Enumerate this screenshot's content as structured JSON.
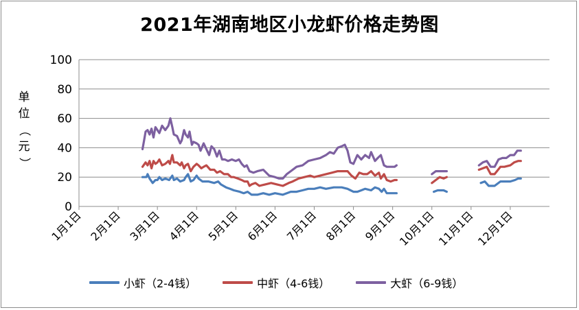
{
  "chart_data": {
    "type": "line",
    "title": "2021年湖南地区小龙虾价格走势图",
    "ylabel": "单位（元）",
    "xlabel": "",
    "ylim": [
      0,
      100
    ],
    "yticks": [
      0,
      20,
      40,
      60,
      80,
      100
    ],
    "categories": [
      "1月1日",
      "2月1日",
      "3月1日",
      "4月1日",
      "5月1日",
      "6月1日",
      "7月1日",
      "8月1日",
      "9月1日",
      "10月1日",
      "11月1日",
      "12月1日"
    ],
    "grid": "horizontal",
    "legend_position": "bottom",
    "series": [
      {
        "name": "小虾（2-4钱）",
        "color": "#4a7ebb",
        "segments": [
          [
            [
              2.62,
              20
            ],
            [
              2.72,
              20
            ],
            [
              2.75,
              22
            ],
            [
              2.8,
              19
            ],
            [
              2.88,
              16
            ],
            [
              2.95,
              18
            ],
            [
              3.0,
              18
            ],
            [
              3.05,
              20
            ],
            [
              3.12,
              18
            ],
            [
              3.2,
              19
            ],
            [
              3.3,
              18
            ],
            [
              3.38,
              21
            ],
            [
              3.42,
              18
            ],
            [
              3.5,
              19
            ],
            [
              3.58,
              17
            ],
            [
              3.68,
              18
            ],
            [
              3.72,
              20
            ],
            [
              3.78,
              22
            ],
            [
              3.85,
              17
            ],
            [
              3.92,
              18
            ],
            [
              4.0,
              21
            ],
            [
              4.05,
              19
            ],
            [
              4.15,
              17
            ],
            [
              4.3,
              17
            ],
            [
              4.45,
              16
            ],
            [
              4.55,
              17
            ],
            [
              4.62,
              15
            ],
            [
              4.75,
              13
            ],
            [
              4.85,
              12
            ],
            [
              4.95,
              11
            ],
            [
              5.1,
              10
            ],
            [
              5.2,
              9
            ],
            [
              5.3,
              10
            ],
            [
              5.4,
              8
            ],
            [
              5.55,
              8
            ],
            [
              5.7,
              9
            ],
            [
              5.85,
              8
            ],
            [
              6.0,
              9
            ],
            [
              6.2,
              8
            ],
            [
              6.4,
              10
            ],
            [
              6.55,
              10
            ],
            [
              6.7,
              11
            ],
            [
              6.85,
              12
            ],
            [
              7.0,
              12
            ],
            [
              7.15,
              13
            ],
            [
              7.3,
              12
            ],
            [
              7.5,
              13
            ],
            [
              7.7,
              13
            ],
            [
              7.85,
              12
            ],
            [
              8.0,
              10
            ],
            [
              8.1,
              10
            ],
            [
              8.2,
              11
            ],
            [
              8.3,
              12
            ],
            [
              8.45,
              11
            ],
            [
              8.55,
              13
            ],
            [
              8.65,
              12
            ],
            [
              8.72,
              10
            ],
            [
              8.78,
              12
            ],
            [
              8.85,
              9
            ],
            [
              8.95,
              9
            ],
            [
              9.05,
              9
            ],
            [
              9.1,
              9
            ]
          ],
          [
            [
              10.05,
              10
            ],
            [
              10.15,
              11
            ],
            [
              10.3,
              11
            ],
            [
              10.38,
              10
            ]
          ],
          [
            [
              11.25,
              16
            ],
            [
              11.35,
              17
            ],
            [
              11.45,
              14
            ],
            [
              11.6,
              14
            ],
            [
              11.75,
              17
            ],
            [
              11.9,
              17
            ],
            [
              12.0,
              17
            ],
            [
              12.12,
              18
            ],
            [
              12.2,
              19
            ],
            [
              12.27,
              19
            ]
          ]
        ]
      },
      {
        "name": "中虾（4-6钱）",
        "color": "#be4b48",
        "segments": [
          [
            [
              2.62,
              27
            ],
            [
              2.7,
              30
            ],
            [
              2.75,
              28
            ],
            [
              2.8,
              31
            ],
            [
              2.85,
              26
            ],
            [
              2.9,
              31
            ],
            [
              2.95,
              29
            ],
            [
              3.0,
              30
            ],
            [
              3.05,
              32
            ],
            [
              3.12,
              28
            ],
            [
              3.2,
              29
            ],
            [
              3.28,
              31
            ],
            [
              3.32,
              29
            ],
            [
              3.38,
              35
            ],
            [
              3.42,
              30
            ],
            [
              3.5,
              30
            ],
            [
              3.58,
              28
            ],
            [
              3.62,
              30
            ],
            [
              3.68,
              26
            ],
            [
              3.72,
              28
            ],
            [
              3.78,
              29
            ],
            [
              3.85,
              24
            ],
            [
              3.92,
              27
            ],
            [
              4.0,
              29
            ],
            [
              4.05,
              28
            ],
            [
              4.12,
              26
            ],
            [
              4.18,
              27
            ],
            [
              4.25,
              28
            ],
            [
              4.35,
              25
            ],
            [
              4.45,
              25
            ],
            [
              4.52,
              23
            ],
            [
              4.6,
              24
            ],
            [
              4.7,
              22
            ],
            [
              4.8,
              22
            ],
            [
              4.88,
              20
            ],
            [
              4.95,
              20
            ],
            [
              5.05,
              19
            ],
            [
              5.15,
              18
            ],
            [
              5.22,
              17
            ],
            [
              5.3,
              17
            ],
            [
              5.35,
              14
            ],
            [
              5.4,
              15
            ],
            [
              5.5,
              16
            ],
            [
              5.6,
              14
            ],
            [
              5.75,
              15
            ],
            [
              5.9,
              16
            ],
            [
              6.05,
              15
            ],
            [
              6.2,
              14
            ],
            [
              6.35,
              16
            ],
            [
              6.45,
              17
            ],
            [
              6.6,
              19
            ],
            [
              6.75,
              20
            ],
            [
              6.9,
              21
            ],
            [
              7.0,
              20
            ],
            [
              7.15,
              21
            ],
            [
              7.3,
              22
            ],
            [
              7.45,
              23
            ],
            [
              7.6,
              24
            ],
            [
              7.75,
              24
            ],
            [
              7.85,
              24
            ],
            [
              7.95,
              21
            ],
            [
              8.05,
              19
            ],
            [
              8.15,
              23
            ],
            [
              8.25,
              22
            ],
            [
              8.35,
              22
            ],
            [
              8.45,
              24
            ],
            [
              8.55,
              21
            ],
            [
              8.65,
              23
            ],
            [
              8.7,
              19
            ],
            [
              8.78,
              22
            ],
            [
              8.85,
              18
            ],
            [
              8.95,
              17
            ],
            [
              9.05,
              18
            ],
            [
              9.1,
              18
            ]
          ],
          [
            [
              10.0,
              16
            ],
            [
              10.1,
              18
            ],
            [
              10.2,
              20
            ],
            [
              10.3,
              19
            ],
            [
              10.38,
              20
            ]
          ],
          [
            [
              11.2,
              25
            ],
            [
              11.3,
              26
            ],
            [
              11.4,
              27
            ],
            [
              11.5,
              22
            ],
            [
              11.6,
              22
            ],
            [
              11.75,
              27
            ],
            [
              11.85,
              27
            ],
            [
              12.0,
              28
            ],
            [
              12.1,
              30
            ],
            [
              12.2,
              31
            ],
            [
              12.27,
              31
            ]
          ]
        ]
      },
      {
        "name": "大虾（6-9钱）",
        "color": "#7d60a0",
        "segments": [
          [
            [
              2.62,
              39
            ],
            [
              2.66,
              45
            ],
            [
              2.7,
              51
            ],
            [
              2.75,
              52
            ],
            [
              2.8,
              49
            ],
            [
              2.85,
              53
            ],
            [
              2.9,
              47
            ],
            [
              2.95,
              54
            ],
            [
              3.0,
              52
            ],
            [
              3.05,
              50
            ],
            [
              3.12,
              55
            ],
            [
              3.2,
              52
            ],
            [
              3.28,
              55
            ],
            [
              3.33,
              60
            ],
            [
              3.38,
              54
            ],
            [
              3.42,
              49
            ],
            [
              3.5,
              48
            ],
            [
              3.58,
              43
            ],
            [
              3.62,
              45
            ],
            [
              3.68,
              52
            ],
            [
              3.72,
              49
            ],
            [
              3.78,
              47
            ],
            [
              3.82,
              51
            ],
            [
              3.88,
              42
            ],
            [
              3.92,
              44
            ],
            [
              4.0,
              43
            ],
            [
              4.05,
              42
            ],
            [
              4.1,
              38
            ],
            [
              4.18,
              43
            ],
            [
              4.25,
              39
            ],
            [
              4.32,
              35
            ],
            [
              4.38,
              41
            ],
            [
              4.45,
              39
            ],
            [
              4.52,
              34
            ],
            [
              4.58,
              38
            ],
            [
              4.65,
              32
            ],
            [
              4.72,
              32
            ],
            [
              4.8,
              31
            ],
            [
              4.9,
              32
            ],
            [
              5.0,
              31
            ],
            [
              5.08,
              32
            ],
            [
              5.15,
              29
            ],
            [
              5.22,
              27
            ],
            [
              5.28,
              28
            ],
            [
              5.35,
              24
            ],
            [
              5.45,
              23
            ],
            [
              5.55,
              24
            ],
            [
              5.7,
              25
            ],
            [
              5.85,
              21
            ],
            [
              6.0,
              20
            ],
            [
              6.1,
              19
            ],
            [
              6.2,
              19
            ],
            [
              6.3,
              22
            ],
            [
              6.4,
              24
            ],
            [
              6.55,
              27
            ],
            [
              6.7,
              28
            ],
            [
              6.85,
              31
            ],
            [
              7.0,
              32
            ],
            [
              7.15,
              33
            ],
            [
              7.3,
              35
            ],
            [
              7.4,
              37
            ],
            [
              7.5,
              36
            ],
            [
              7.6,
              40
            ],
            [
              7.7,
              41
            ],
            [
              7.78,
              42
            ],
            [
              7.85,
              38
            ],
            [
              7.92,
              30
            ],
            [
              8.0,
              29
            ],
            [
              8.1,
              35
            ],
            [
              8.2,
              32
            ],
            [
              8.3,
              35
            ],
            [
              8.4,
              33
            ],
            [
              8.45,
              37
            ],
            [
              8.55,
              31
            ],
            [
              8.62,
              33
            ],
            [
              8.7,
              35
            ],
            [
              8.78,
              28
            ],
            [
              8.85,
              27
            ],
            [
              8.95,
              27
            ],
            [
              9.05,
              27
            ],
            [
              9.1,
              28
            ]
          ],
          [
            [
              10.0,
              22
            ],
            [
              10.1,
              24
            ],
            [
              10.2,
              24
            ],
            [
              10.3,
              24
            ],
            [
              10.38,
              24
            ]
          ],
          [
            [
              11.2,
              28
            ],
            [
              11.3,
              30
            ],
            [
              11.4,
              31
            ],
            [
              11.5,
              27
            ],
            [
              11.6,
              27
            ],
            [
              11.7,
              32
            ],
            [
              11.8,
              33
            ],
            [
              11.9,
              33
            ],
            [
              12.0,
              35
            ],
            [
              12.1,
              35
            ],
            [
              12.18,
              38
            ],
            [
              12.27,
              38
            ]
          ]
        ]
      }
    ]
  }
}
